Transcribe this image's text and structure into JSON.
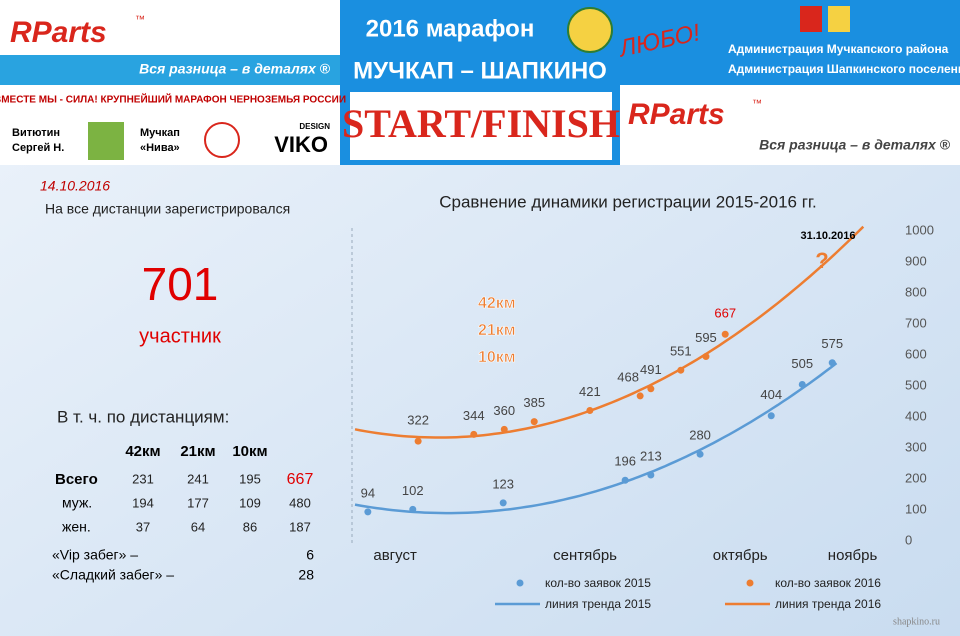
{
  "header": {
    "logo": "RParts",
    "logo_mark": "™",
    "slogan": "Вся разница – в деталях ®",
    "title_line1": "2016 марафон",
    "title_line2": "МУЧКАП – ШАПКИНО",
    "start_finish": "START/FINISH",
    "lyubo": "ЛЮБО!",
    "admin1": "Администрация Мучкапского района",
    "admin2": "Администрация Шапкинского поселения",
    "banner": "ВМЕСТЕ МЫ - СИЛА! КРУПНЕЙШИЙ МАРАФОН ЧЕРНОЗЕМЬЯ РОССИИ",
    "sponsors": [
      "Витютин",
      "Сергей Н.",
      "Мучкап",
      "«Нива»",
      "DESIGN",
      "VIKO"
    ]
  },
  "stats": {
    "date": "14.10.2016",
    "caption": "На все дистанции зарегистрировался",
    "total": 701,
    "unit": "участник",
    "subtitle": "В т. ч. по дистанциям:",
    "columns": [
      "42км",
      "21км",
      "10км"
    ],
    "rows": [
      {
        "label": "Всего",
        "values": [
          231,
          241,
          195,
          667
        ]
      },
      {
        "label": "муж.",
        "values": [
          194,
          177,
          109,
          480
        ]
      },
      {
        "label": "жен.",
        "values": [
          37,
          64,
          86,
          187
        ]
      }
    ],
    "extras": [
      {
        "label": "«Vip забег»  –",
        "value": 6
      },
      {
        "label": "«Сладкий забег» –",
        "value": 28
      }
    ]
  },
  "chart_data": {
    "type": "scatter",
    "title": "Сравнение динамики регистрации 2015-2016 гг.",
    "annotations": [
      "31.10.2016",
      "?"
    ],
    "distances": [
      "42км",
      "21км",
      "10км"
    ],
    "xlim": [
      0,
      100
    ],
    "xticks": [
      {
        "value": 7.5,
        "label": "август"
      },
      {
        "value": 43,
        "label": "сентябрь"
      },
      {
        "value": 72,
        "label": "октябрь"
      },
      {
        "value": 93,
        "label": "ноябрь"
      }
    ],
    "ylim": [
      0,
      1000
    ],
    "yticks": [
      0,
      100,
      200,
      300,
      400,
      500,
      600,
      700,
      800,
      900,
      1000
    ],
    "yaxis_side": "right",
    "grid": false,
    "series": [
      {
        "name": "кол-во заявок 2015",
        "color": "#5b9bd5",
        "x": [
          2.4,
          10.8,
          27.7,
          50.5,
          55.3,
          64.5,
          77.8,
          83.6,
          89.2
        ],
        "values": [
          94,
          102,
          123,
          196,
          213,
          280,
          404,
          505,
          575
        ]
      },
      {
        "name": "кол-во заявок 2016",
        "color": "#ed7d31",
        "x": [
          11.8,
          22.2,
          27.9,
          33.5,
          43.9,
          53.3,
          55.3,
          60.9,
          65.6,
          69.2
        ],
        "values": [
          322,
          344,
          360,
          385,
          421,
          468,
          491,
          551,
          595,
          667
        ]
      }
    ],
    "trendlines": [
      {
        "name": "линия тренда 2015",
        "color": "#5b9bd5"
      },
      {
        "name": "линия тренда 2016",
        "color": "#ed7d31"
      }
    ],
    "source": "shapkino.ru"
  }
}
